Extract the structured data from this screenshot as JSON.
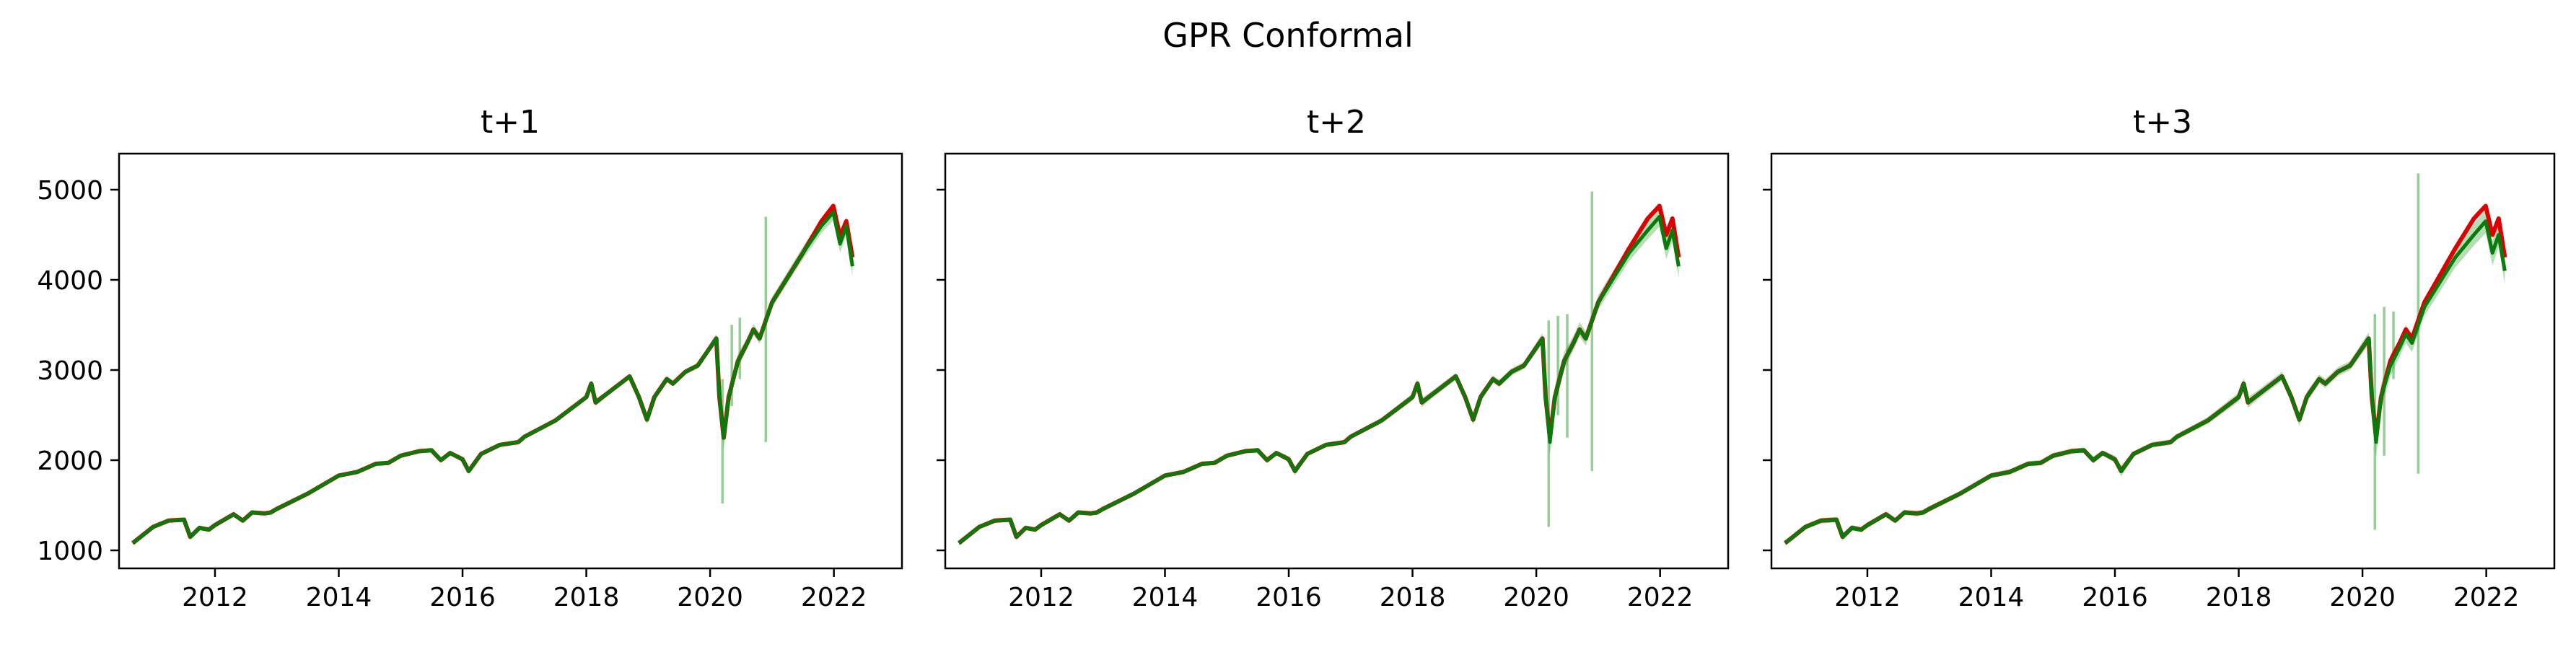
{
  "figure": {
    "title": "GPR Conformal"
  },
  "colors": {
    "predicted": "#dd0000",
    "actual": "#0a7a0a",
    "interval": "#2ca02c"
  },
  "chart_data": [
    {
      "type": "line",
      "title": "t+1",
      "xlabel": "",
      "ylabel": "",
      "x_tick_labels": [
        "2012",
        "2014",
        "2016",
        "2018",
        "2020",
        "2022"
      ],
      "y_tick_labels": [
        "1000",
        "2000",
        "3000",
        "4000",
        "5000"
      ],
      "xlim": [
        2010.45,
        2023.1
      ],
      "ylim": [
        800,
        5400
      ],
      "grid": false,
      "series_x": [
        2010.67,
        2011.0,
        2011.25,
        2011.5,
        2011.6,
        2011.75,
        2011.9,
        2012.0,
        2012.3,
        2012.45,
        2012.6,
        2012.8,
        2012.9,
        2013.0,
        2013.5,
        2014.0,
        2014.3,
        2014.6,
        2014.8,
        2015.0,
        2015.3,
        2015.5,
        2015.65,
        2015.8,
        2016.0,
        2016.1,
        2016.3,
        2016.6,
        2016.9,
        2017.0,
        2017.5,
        2018.0,
        2018.08,
        2018.15,
        2018.3,
        2018.7,
        2018.85,
        2018.98,
        2019.1,
        2019.3,
        2019.4,
        2019.6,
        2019.8,
        2020.1,
        2020.15,
        2020.22,
        2020.3,
        2020.45,
        2020.6,
        2020.7,
        2020.8,
        2020.95,
        2021.0,
        2021.5,
        2021.8,
        2021.99,
        2022.1,
        2022.2,
        2022.3
      ],
      "series": [
        {
          "role": "actual",
          "values": [
            1080,
            1260,
            1330,
            1340,
            1150,
            1250,
            1230,
            1280,
            1400,
            1330,
            1420,
            1410,
            1420,
            1460,
            1630,
            1830,
            1870,
            1960,
            1970,
            2050,
            2100,
            2110,
            2000,
            2080,
            2010,
            1880,
            2070,
            2170,
            2200,
            2260,
            2440,
            2700,
            2850,
            2640,
            2720,
            2930,
            2700,
            2450,
            2700,
            2900,
            2850,
            2980,
            3050,
            3350,
            2700,
            2250,
            2700,
            3100,
            3300,
            3450,
            3350,
            3650,
            3750,
            4300,
            4600,
            4750,
            4400,
            4600,
            4150
          ]
        },
        {
          "role": "predicted",
          "values": [
            1080,
            1260,
            1330,
            1340,
            1150,
            1250,
            1230,
            1280,
            1400,
            1330,
            1420,
            1410,
            1420,
            1460,
            1630,
            1830,
            1870,
            1960,
            1970,
            2050,
            2100,
            2110,
            2000,
            2080,
            2010,
            1880,
            2070,
            2170,
            2200,
            2260,
            2440,
            2700,
            2850,
            2640,
            2720,
            2930,
            2700,
            2450,
            2700,
            2900,
            2850,
            2980,
            3050,
            3350,
            2700,
            2250,
            2700,
            3100,
            3300,
            3450,
            3350,
            3650,
            3750,
            4300,
            4650,
            4820,
            4480,
            4650,
            4250
          ]
        }
      ],
      "band_half_width": [
        20,
        20,
        20,
        20,
        30,
        20,
        20,
        20,
        20,
        20,
        20,
        20,
        20,
        20,
        20,
        20,
        20,
        20,
        20,
        20,
        20,
        20,
        30,
        20,
        30,
        40,
        20,
        20,
        20,
        20,
        20,
        30,
        40,
        40,
        30,
        30,
        40,
        50,
        40,
        30,
        30,
        30,
        30,
        50,
        80,
        120,
        100,
        80,
        60,
        60,
        60,
        60,
        60,
        70,
        80,
        90,
        100,
        100,
        110
      ],
      "spikes": [
        {
          "x": 2020.2,
          "low": 1520,
          "high": 2900
        },
        {
          "x": 2020.35,
          "low": 2600,
          "high": 3500
        },
        {
          "x": 2020.48,
          "low": 2900,
          "high": 3580
        },
        {
          "x": 2020.9,
          "low": 2200,
          "high": 4700
        }
      ]
    },
    {
      "type": "line",
      "title": "t+2",
      "xlabel": "",
      "ylabel": "",
      "x_tick_labels": [
        "2012",
        "2014",
        "2016",
        "2018",
        "2020",
        "2022"
      ],
      "y_tick_labels": [
        "1000",
        "2000",
        "3000",
        "4000",
        "5000"
      ],
      "xlim": [
        2010.45,
        2023.1
      ],
      "ylim": [
        800,
        5400
      ],
      "grid": false,
      "series_x": [
        2010.67,
        2011.0,
        2011.25,
        2011.5,
        2011.6,
        2011.75,
        2011.9,
        2012.0,
        2012.3,
        2012.45,
        2012.6,
        2012.8,
        2012.9,
        2013.0,
        2013.5,
        2014.0,
        2014.3,
        2014.6,
        2014.8,
        2015.0,
        2015.3,
        2015.5,
        2015.65,
        2015.8,
        2016.0,
        2016.1,
        2016.3,
        2016.6,
        2016.9,
        2017.0,
        2017.5,
        2018.0,
        2018.08,
        2018.15,
        2018.3,
        2018.7,
        2018.85,
        2018.98,
        2019.1,
        2019.3,
        2019.4,
        2019.6,
        2019.8,
        2020.1,
        2020.15,
        2020.22,
        2020.3,
        2020.45,
        2020.6,
        2020.7,
        2020.8,
        2020.95,
        2021.0,
        2021.5,
        2021.8,
        2021.99,
        2022.1,
        2022.2,
        2022.3
      ],
      "series": [
        {
          "role": "actual",
          "values": [
            1080,
            1260,
            1330,
            1340,
            1150,
            1250,
            1230,
            1280,
            1400,
            1330,
            1420,
            1410,
            1420,
            1460,
            1630,
            1830,
            1870,
            1960,
            1970,
            2050,
            2100,
            2110,
            2000,
            2080,
            2010,
            1880,
            2070,
            2170,
            2200,
            2260,
            2440,
            2700,
            2850,
            2640,
            2720,
            2930,
            2700,
            2450,
            2700,
            2900,
            2850,
            2980,
            3050,
            3350,
            2700,
            2200,
            2700,
            3100,
            3300,
            3450,
            3350,
            3650,
            3750,
            4300,
            4550,
            4700,
            4350,
            4550,
            4150
          ]
        },
        {
          "role": "predicted",
          "values": [
            1080,
            1260,
            1330,
            1340,
            1150,
            1250,
            1230,
            1280,
            1400,
            1330,
            1420,
            1410,
            1420,
            1460,
            1630,
            1830,
            1870,
            1960,
            1970,
            2050,
            2100,
            2110,
            2000,
            2080,
            2010,
            1880,
            2070,
            2170,
            2200,
            2260,
            2440,
            2700,
            2850,
            2640,
            2720,
            2930,
            2700,
            2450,
            2700,
            2900,
            2850,
            2980,
            3050,
            3350,
            2700,
            2250,
            2700,
            3100,
            3300,
            3450,
            3350,
            3650,
            3750,
            4350,
            4680,
            4820,
            4500,
            4680,
            4250
          ]
        }
      ],
      "band_half_width": [
        25,
        25,
        25,
        25,
        35,
        25,
        25,
        25,
        25,
        25,
        25,
        25,
        25,
        25,
        25,
        25,
        25,
        25,
        25,
        25,
        25,
        25,
        35,
        25,
        35,
        50,
        25,
        25,
        25,
        25,
        30,
        40,
        50,
        50,
        40,
        40,
        50,
        60,
        50,
        40,
        40,
        40,
        40,
        60,
        100,
        150,
        120,
        100,
        80,
        80,
        80,
        80,
        80,
        90,
        100,
        110,
        120,
        120,
        130
      ],
      "spikes": [
        {
          "x": 2020.2,
          "low": 1260,
          "high": 3550
        },
        {
          "x": 2020.35,
          "low": 2500,
          "high": 3600
        },
        {
          "x": 2020.5,
          "low": 2250,
          "high": 3620
        },
        {
          "x": 2020.9,
          "low": 1880,
          "high": 4980
        }
      ]
    },
    {
      "type": "line",
      "title": "t+3",
      "xlabel": "",
      "ylabel": "",
      "x_tick_labels": [
        "2012",
        "2014",
        "2016",
        "2018",
        "2020",
        "2022"
      ],
      "y_tick_labels": [
        "1000",
        "2000",
        "3000",
        "4000",
        "5000"
      ],
      "xlim": [
        2010.45,
        2023.1
      ],
      "ylim": [
        800,
        5400
      ],
      "grid": false,
      "series_x": [
        2010.67,
        2011.0,
        2011.25,
        2011.5,
        2011.6,
        2011.75,
        2011.9,
        2012.0,
        2012.3,
        2012.45,
        2012.6,
        2012.8,
        2012.9,
        2013.0,
        2013.5,
        2014.0,
        2014.3,
        2014.6,
        2014.8,
        2015.0,
        2015.3,
        2015.5,
        2015.65,
        2015.8,
        2016.0,
        2016.1,
        2016.3,
        2016.6,
        2016.9,
        2017.0,
        2017.5,
        2018.0,
        2018.08,
        2018.15,
        2018.3,
        2018.7,
        2018.85,
        2018.98,
        2019.1,
        2019.3,
        2019.4,
        2019.6,
        2019.8,
        2020.1,
        2020.15,
        2020.22,
        2020.3,
        2020.45,
        2020.6,
        2020.7,
        2020.8,
        2020.95,
        2021.0,
        2021.5,
        2021.8,
        2021.99,
        2022.1,
        2022.2,
        2022.3
      ],
      "series": [
        {
          "role": "actual",
          "values": [
            1080,
            1260,
            1330,
            1340,
            1150,
            1250,
            1230,
            1280,
            1400,
            1330,
            1420,
            1410,
            1420,
            1460,
            1630,
            1830,
            1870,
            1960,
            1970,
            2050,
            2100,
            2110,
            2000,
            2080,
            2010,
            1880,
            2070,
            2170,
            2200,
            2260,
            2440,
            2700,
            2850,
            2640,
            2720,
            2930,
            2700,
            2450,
            2700,
            2900,
            2850,
            2980,
            3050,
            3350,
            2700,
            2200,
            2700,
            3050,
            3250,
            3400,
            3300,
            3600,
            3700,
            4250,
            4500,
            4650,
            4300,
            4500,
            4100
          ]
        },
        {
          "role": "predicted",
          "values": [
            1080,
            1260,
            1330,
            1340,
            1150,
            1250,
            1230,
            1280,
            1400,
            1330,
            1420,
            1410,
            1420,
            1460,
            1630,
            1830,
            1870,
            1960,
            1970,
            2050,
            2100,
            2110,
            2000,
            2080,
            2010,
            1880,
            2070,
            2170,
            2200,
            2260,
            2440,
            2700,
            2850,
            2640,
            2720,
            2930,
            2700,
            2450,
            2700,
            2900,
            2850,
            2980,
            3050,
            3350,
            2700,
            2250,
            2700,
            3100,
            3300,
            3450,
            3350,
            3650,
            3750,
            4350,
            4680,
            4820,
            4500,
            4680,
            4250
          ]
        }
      ],
      "band_half_width": [
        30,
        30,
        30,
        30,
        40,
        30,
        30,
        30,
        30,
        30,
        30,
        30,
        30,
        30,
        30,
        30,
        30,
        30,
        30,
        30,
        30,
        30,
        40,
        30,
        40,
        60,
        30,
        30,
        30,
        30,
        40,
        50,
        60,
        60,
        50,
        50,
        60,
        70,
        60,
        50,
        50,
        50,
        50,
        70,
        120,
        180,
        140,
        120,
        100,
        100,
        100,
        100,
        100,
        110,
        120,
        130,
        140,
        140,
        150
      ],
      "spikes": [
        {
          "x": 2020.2,
          "low": 1230,
          "high": 3620
        },
        {
          "x": 2020.35,
          "low": 2050,
          "high": 3700
        },
        {
          "x": 2020.5,
          "low": 2900,
          "high": 3650
        },
        {
          "x": 2020.9,
          "low": 1850,
          "high": 5180
        }
      ]
    }
  ]
}
